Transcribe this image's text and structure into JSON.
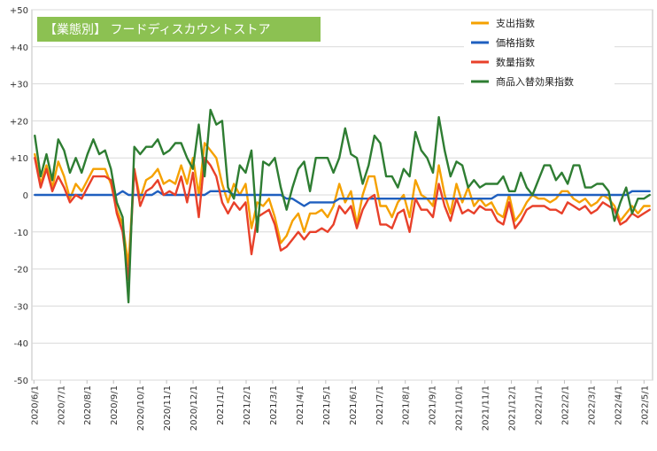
{
  "chart_data": {
    "type": "line",
    "title": "【業態別】 フードディスカウントストア",
    "title_background": "#8cc152",
    "xlabel": "",
    "ylabel": "",
    "ylim": [
      -50,
      50
    ],
    "y_ticks": [
      "+50",
      "+40",
      "+30",
      "+20",
      "+10",
      "0",
      "-10",
      "-20",
      "-30",
      "-40",
      "-50"
    ],
    "y_tick_values": [
      50,
      40,
      30,
      20,
      10,
      0,
      -10,
      -20,
      -30,
      -40,
      -50
    ],
    "x_tick_labels": [
      "2020/6/1",
      "2020/7/1",
      "2020/8/1",
      "2020/9/1",
      "2020/10/1",
      "2020/11/1",
      "2020/12/1",
      "2021/1/1",
      "2021/2/1",
      "2021/3/1",
      "2021/4/1",
      "2021/5/1",
      "2021/6/1",
      "2021/7/1",
      "2021/8/1",
      "2021/9/1",
      "2021/10/1",
      "2021/11/1",
      "2021/12/1",
      "2022/1/1",
      "2022/2/1",
      "2022/3/1",
      "2022/4/1",
      "2022/5/1"
    ],
    "grid": true,
    "legend_position": "top-right",
    "series": [
      {
        "name": "支出指数",
        "color": "#f5a100",
        "values": [
          11,
          3,
          8,
          2,
          9,
          5,
          -1,
          3,
          1,
          4,
          7,
          7,
          7,
          3,
          -4,
          -8,
          -19,
          7,
          -1,
          4,
          5,
          7,
          3,
          4,
          3,
          8,
          3,
          10,
          0,
          14,
          12,
          10,
          3,
          -2,
          3,
          0,
          3,
          -9,
          -2,
          -3,
          -1,
          -6,
          -13,
          -11,
          -7,
          -5,
          -10,
          -5,
          -5,
          -4,
          -6,
          -3,
          3,
          -2,
          1,
          -8,
          0,
          5,
          5,
          -3,
          -3,
          -6,
          -2,
          0,
          -6,
          4,
          0,
          -1,
          -3,
          8,
          0,
          -5,
          3,
          -2,
          2,
          -3,
          -1,
          -3,
          -2,
          -5,
          -6,
          0,
          -7,
          -5,
          -2,
          0,
          -1,
          -1,
          -2,
          -1,
          1,
          1,
          -1,
          -2,
          -1,
          -3,
          -2,
          0,
          -1,
          -3,
          -7,
          -5,
          -3,
          -5,
          -3,
          -3
        ]
      },
      {
        "name": "価格指数",
        "color": "#1f5fbf",
        "values": [
          0,
          0,
          0,
          0,
          0,
          0,
          0,
          0,
          0,
          0,
          0,
          0,
          0,
          0,
          0,
          1,
          0,
          0,
          0,
          0,
          0,
          1,
          0,
          0,
          0,
          0,
          0,
          0,
          0,
          0,
          1,
          1,
          1,
          1,
          0,
          0,
          0,
          0,
          0,
          0,
          0,
          0,
          0,
          -1,
          -1,
          -2,
          -3,
          -2,
          -2,
          -2,
          -2,
          -2,
          -1,
          -1,
          -1,
          -1,
          -1,
          -1,
          -1,
          -1,
          -1,
          -1,
          -1,
          -1,
          -1,
          -1,
          -1,
          -1,
          -1,
          -1,
          -1,
          -1,
          -1,
          -1,
          -1,
          -1,
          -1,
          -1,
          -1,
          0,
          0,
          0,
          0,
          0,
          0,
          0,
          0,
          0,
          0,
          0,
          0,
          0,
          0,
          0,
          0,
          0,
          0,
          0,
          0,
          0,
          0,
          0,
          1,
          1,
          1,
          1
        ]
      },
      {
        "name": "数量指数",
        "color": "#e8402a",
        "values": [
          10,
          2,
          7,
          1,
          5,
          2,
          -2,
          0,
          -1,
          2,
          5,
          5,
          5,
          4,
          -5,
          -10,
          -23,
          7,
          -3,
          1,
          2,
          4,
          0,
          1,
          0,
          5,
          -2,
          6,
          -6,
          10,
          8,
          5,
          -2,
          -5,
          -2,
          -4,
          -2,
          -16,
          -6,
          -5,
          -4,
          -8,
          -15,
          -14,
          -12,
          -10,
          -12,
          -10,
          -10,
          -9,
          -10,
          -8,
          -3,
          -5,
          -3,
          -9,
          -4,
          -1,
          0,
          -8,
          -8,
          -9,
          -5,
          -4,
          -10,
          -1,
          -4,
          -4,
          -6,
          3,
          -3,
          -7,
          -1,
          -5,
          -4,
          -5,
          -3,
          -4,
          -4,
          -7,
          -8,
          -2,
          -9,
          -7,
          -4,
          -3,
          -3,
          -3,
          -4,
          -4,
          -5,
          -2,
          -3,
          -4,
          -3,
          -5,
          -4,
          -2,
          -3,
          -4,
          -8,
          -7,
          -5,
          -6,
          -5,
          -4
        ]
      },
      {
        "name": "商品入替効果指数",
        "color": "#2e7d32",
        "values": [
          16,
          5,
          11,
          4,
          15,
          12,
          6,
          10,
          6,
          11,
          15,
          11,
          12,
          7,
          -2,
          -6,
          -29,
          13,
          11,
          13,
          13,
          15,
          11,
          12,
          14,
          14,
          10,
          7,
          19,
          5,
          23,
          19,
          20,
          2,
          -1,
          8,
          6,
          12,
          -10,
          9,
          8,
          10,
          2,
          -4,
          2,
          7,
          9,
          1,
          10,
          10,
          10,
          6,
          10,
          18,
          11,
          10,
          3,
          8,
          16,
          14,
          5,
          5,
          2,
          7,
          5,
          17,
          12,
          10,
          6,
          21,
          12,
          5,
          9,
          8,
          2,
          4,
          2,
          3,
          3,
          3,
          5,
          1,
          1,
          6,
          2,
          0,
          4,
          8,
          8,
          4,
          6,
          3,
          8,
          8,
          2,
          2,
          3,
          3,
          1,
          -7,
          -2,
          2,
          -5,
          -1,
          -1,
          0
        ]
      }
    ]
  }
}
